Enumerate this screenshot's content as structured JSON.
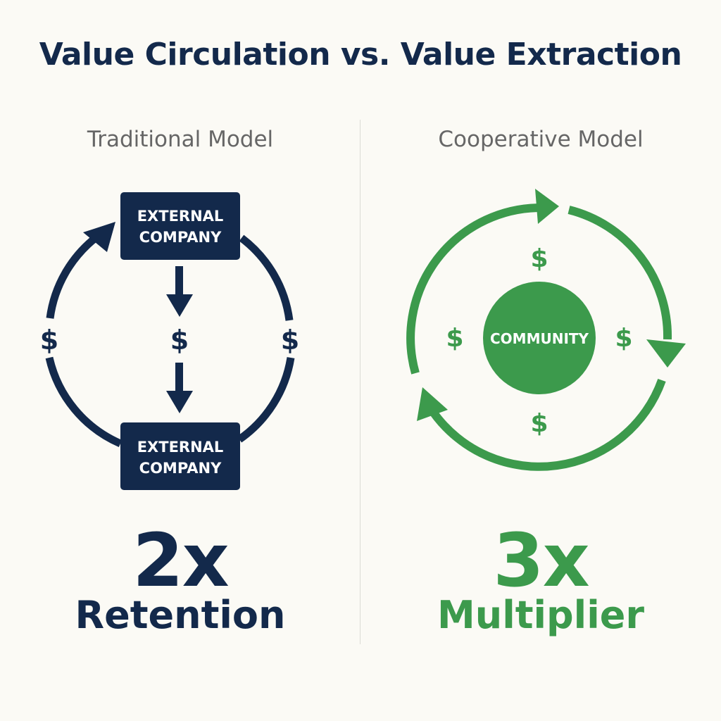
{
  "title": "Value Circulation vs. Value Extraction",
  "left": {
    "subtitle": "Traditional Model",
    "top_box": {
      "line1": "EXTERNAL",
      "line2": "COMPANY"
    },
    "bottom_box": {
      "line1": "EXTERNAL",
      "line2": "COMPANY"
    },
    "dollar_symbol": "$",
    "metric_value": "2x",
    "metric_label": "Retention",
    "color": "#13294b"
  },
  "right": {
    "subtitle": "Cooperative Model",
    "center_label": "COMMUNITY",
    "dollar_symbol": "$",
    "metric_value": "3x",
    "metric_label": "Multiplier",
    "color": "#3c9a4c"
  }
}
